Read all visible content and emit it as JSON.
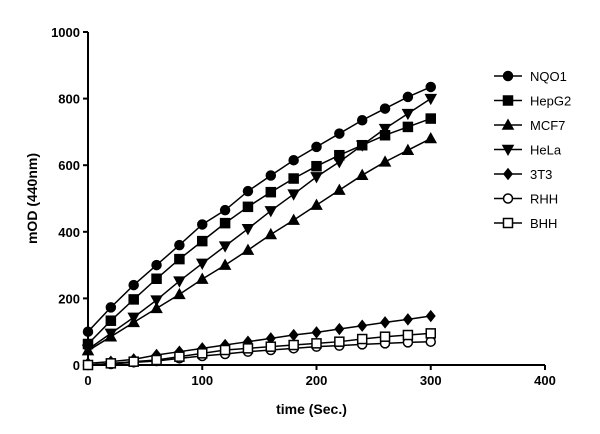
{
  "chart_data": {
    "type": "line",
    "title": "",
    "xlabel": "time (Sec.)",
    "ylabel": "mOD (440nm)",
    "xlim": [
      0,
      400
    ],
    "ylim": [
      0,
      1000
    ],
    "xticks": [
      0,
      100,
      200,
      300,
      400
    ],
    "yticks": [
      0,
      200,
      400,
      600,
      800,
      1000
    ],
    "grid": false,
    "legend_placement": "right",
    "x": [
      0,
      20,
      40,
      60,
      80,
      100,
      120,
      140,
      160,
      180,
      200,
      220,
      240,
      260,
      280,
      300
    ],
    "series": [
      {
        "name": "NQO1",
        "marker": "circle-filled",
        "values": [
          100,
          173,
          240,
          300,
          360,
          422,
          465,
          522,
          569,
          615,
          655,
          695,
          735,
          770,
          805,
          835
        ]
      },
      {
        "name": "HepG2",
        "marker": "square-filled",
        "values": [
          63,
          133,
          197,
          259,
          318,
          372,
          426,
          475,
          519,
          560,
          597,
          630,
          660,
          690,
          715,
          740
        ]
      },
      {
        "name": "MCF7",
        "marker": "triangle-up-filled",
        "values": [
          43,
          85,
          128,
          170,
          212,
          258,
          300,
          345,
          392,
          435,
          480,
          525,
          570,
          610,
          645,
          680
        ]
      },
      {
        "name": "HeLa",
        "marker": "triangle-down-filled",
        "values": [
          47,
          95,
          143,
          195,
          252,
          305,
          357,
          409,
          463,
          513,
          565,
          610,
          660,
          710,
          755,
          800
        ]
      },
      {
        "name": "3T3",
        "marker": "diamond-filled",
        "values": [
          5,
          10,
          17,
          30,
          40,
          50,
          60,
          70,
          80,
          90,
          98,
          108,
          118,
          128,
          137,
          147
        ]
      },
      {
        "name": "RHH",
        "marker": "circle-open",
        "values": [
          0,
          3,
          8,
          12,
          20,
          27,
          33,
          40,
          45,
          50,
          55,
          58,
          62,
          65,
          68,
          70
        ]
      },
      {
        "name": "BHH",
        "marker": "square-open",
        "values": [
          0,
          5,
          10,
          15,
          25,
          35,
          45,
          50,
          55,
          60,
          65,
          70,
          78,
          85,
          90,
          95
        ]
      }
    ]
  }
}
